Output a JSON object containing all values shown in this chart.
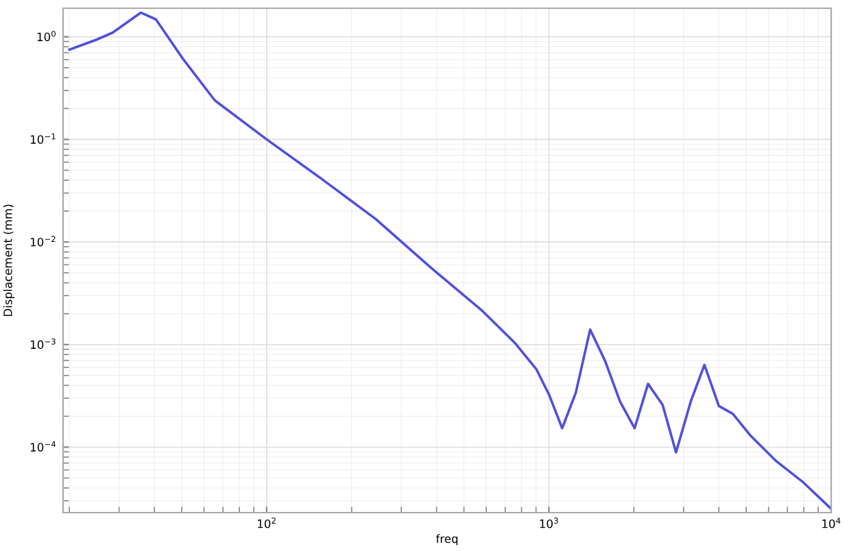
{
  "chart_data": {
    "type": "line",
    "xlabel": "freq",
    "ylabel": "Displacement (mm)",
    "log": "xy",
    "grid": true,
    "legend": false,
    "xlim": [
      19,
      10000
    ],
    "ylim": [
      2.3e-05,
      1.9
    ],
    "xticks": [
      {
        "value": 100,
        "label": "10$^{2}$"
      },
      {
        "value": 1000,
        "label": "10$^{3}$"
      },
      {
        "value": 10000,
        "label": "10$^{4}$"
      }
    ],
    "yticks": [
      {
        "value": 0.0001,
        "label": "10$^{−4}$"
      },
      {
        "value": 0.001,
        "label": "10$^{−3}$"
      },
      {
        "value": 0.01,
        "label": "10$^{−2}$"
      },
      {
        "value": 0.1,
        "label": "10$^{−1}$"
      },
      {
        "value": 1,
        "label": "10$^{0}$"
      }
    ],
    "x": [
      20,
      25,
      28.5,
      35.8,
      40.5,
      50.3,
      65.5,
      100,
      157,
      243,
      385,
      582,
      757,
      902,
      1000,
      1114,
      1245,
      1400,
      1582,
      1787,
      2012,
      2245,
      2528,
      2820,
      3187,
      3556,
      4000,
      4484,
      5160,
      6400,
      7970,
      10000
    ],
    "series": [
      {
        "color": "#5050dd",
        "values": [
          0.75,
          0.94,
          1.1,
          1.72,
          1.48,
          0.62,
          0.24,
          0.1,
          0.041,
          0.0168,
          0.0055,
          0.00212,
          0.00104,
          0.000577,
          0.000327,
          0.000153,
          0.000339,
          0.0014,
          0.00069,
          0.000277,
          0.000153,
          0.000414,
          0.000258,
          8.9e-05,
          0.000283,
          0.000634,
          0.000252,
          0.000211,
          0.000131,
          7.27e-05,
          4.53e-05,
          2.5e-05
        ]
      }
    ]
  }
}
